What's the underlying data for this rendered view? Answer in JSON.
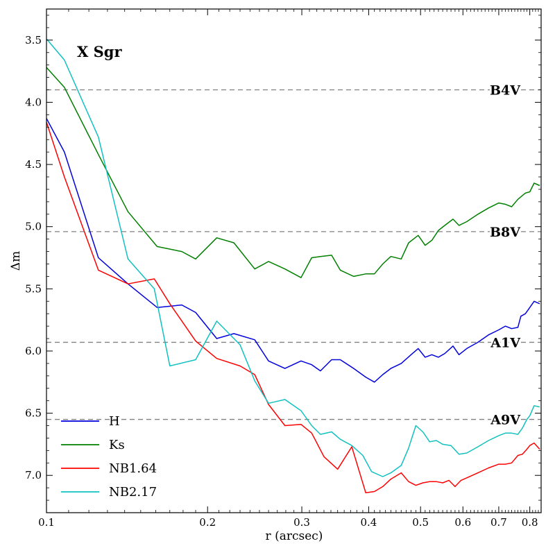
{
  "chart_data": {
    "type": "line",
    "title": "X Sgr",
    "xlabel": "r (arcsec)",
    "ylabel": "Δm",
    "xscale": "log",
    "xlim": [
      0.1,
      0.84
    ],
    "ylim": [
      7.3,
      3.25
    ],
    "y_inverted": true,
    "xticks": [
      0.1,
      0.2,
      0.3,
      0.4,
      0.5,
      0.6,
      0.7,
      0.8
    ],
    "xtick_labels": [
      "0.1",
      "0.2",
      "0.3",
      "0.4",
      "0.5",
      "0.6",
      "0.7",
      "0.8"
    ],
    "yticks": [
      3.5,
      4.0,
      4.5,
      5.0,
      5.5,
      6.0,
      6.5,
      7.0
    ],
    "ytick_labels": [
      "3.5",
      "4.0",
      "4.5",
      "5.0",
      "5.5",
      "6.0",
      "6.5",
      "7.0"
    ],
    "legend_position": "bottom-left",
    "reference_lines": [
      {
        "label": "B4V",
        "value": 3.9
      },
      {
        "label": "B8V",
        "value": 5.04
      },
      {
        "label": "A1V",
        "value": 5.93
      },
      {
        "label": "A9V",
        "value": 6.55
      }
    ],
    "series": [
      {
        "name": "H",
        "color": "#0000dd",
        "x": [
          0.1,
          0.108,
          0.125,
          0.142,
          0.161,
          0.179,
          0.19,
          0.208,
          0.224,
          0.245,
          0.26,
          0.279,
          0.299,
          0.313,
          0.325,
          0.341,
          0.354,
          0.375,
          0.395,
          0.41,
          0.425,
          0.44,
          0.46,
          0.48,
          0.495,
          0.51,
          0.525,
          0.54,
          0.555,
          0.575,
          0.59,
          0.61,
          0.64,
          0.67,
          0.7,
          0.72,
          0.74,
          0.76,
          0.77,
          0.785,
          0.8,
          0.815,
          0.835
        ],
        "y": [
          4.13,
          4.4,
          5.25,
          5.46,
          5.65,
          5.63,
          5.69,
          5.9,
          5.86,
          5.91,
          6.08,
          6.14,
          6.08,
          6.11,
          6.16,
          6.07,
          6.07,
          6.14,
          6.21,
          6.25,
          6.19,
          6.14,
          6.1,
          6.03,
          5.98,
          6.05,
          6.03,
          6.05,
          6.02,
          5.96,
          6.03,
          5.98,
          5.93,
          5.87,
          5.83,
          5.8,
          5.82,
          5.81,
          5.72,
          5.7,
          5.65,
          5.6,
          5.62
        ]
      },
      {
        "name": "Ks",
        "color": "#007f00",
        "x": [
          0.1,
          0.108,
          0.125,
          0.142,
          0.161,
          0.179,
          0.19,
          0.208,
          0.224,
          0.245,
          0.26,
          0.279,
          0.299,
          0.313,
          0.325,
          0.341,
          0.354,
          0.375,
          0.395,
          0.41,
          0.425,
          0.44,
          0.46,
          0.475,
          0.495,
          0.51,
          0.525,
          0.54,
          0.555,
          0.575,
          0.59,
          0.61,
          0.64,
          0.67,
          0.7,
          0.72,
          0.74,
          0.76,
          0.785,
          0.8,
          0.815,
          0.835
        ],
        "y": [
          3.72,
          3.88,
          4.42,
          4.88,
          5.16,
          5.2,
          5.26,
          5.09,
          5.13,
          5.34,
          5.28,
          5.34,
          5.41,
          5.25,
          5.24,
          5.23,
          5.35,
          5.4,
          5.38,
          5.38,
          5.3,
          5.24,
          5.26,
          5.13,
          5.07,
          5.15,
          5.11,
          5.03,
          4.99,
          4.94,
          4.99,
          4.96,
          4.9,
          4.85,
          4.81,
          4.82,
          4.84,
          4.78,
          4.73,
          4.72,
          4.65,
          4.67
        ]
      },
      {
        "name": "NB1.64",
        "color": "#ff0000",
        "x": [
          0.1,
          0.108,
          0.125,
          0.142,
          0.159,
          0.17,
          0.19,
          0.208,
          0.23,
          0.245,
          0.26,
          0.279,
          0.299,
          0.313,
          0.33,
          0.35,
          0.372,
          0.395,
          0.41,
          0.425,
          0.44,
          0.46,
          0.475,
          0.49,
          0.505,
          0.52,
          0.535,
          0.55,
          0.565,
          0.58,
          0.595,
          0.61,
          0.64,
          0.67,
          0.7,
          0.72,
          0.74,
          0.76,
          0.775,
          0.79,
          0.8,
          0.815,
          0.835
        ],
        "y": [
          4.16,
          4.6,
          5.35,
          5.46,
          5.42,
          5.62,
          5.92,
          6.06,
          6.12,
          6.19,
          6.43,
          6.6,
          6.59,
          6.66,
          6.85,
          6.95,
          6.77,
          7.14,
          7.13,
          7.09,
          7.03,
          6.98,
          7.05,
          7.08,
          7.06,
          7.05,
          7.05,
          7.06,
          7.04,
          7.09,
          7.04,
          7.02,
          6.98,
          6.94,
          6.91,
          6.91,
          6.9,
          6.84,
          6.83,
          6.79,
          6.76,
          6.74,
          6.79
        ]
      },
      {
        "name": "NB2.17",
        "color": "#11c0c0",
        "x": [
          0.1,
          0.108,
          0.125,
          0.142,
          0.159,
          0.17,
          0.19,
          0.208,
          0.23,
          0.245,
          0.26,
          0.279,
          0.299,
          0.313,
          0.325,
          0.341,
          0.354,
          0.372,
          0.39,
          0.405,
          0.425,
          0.44,
          0.46,
          0.475,
          0.49,
          0.505,
          0.52,
          0.535,
          0.55,
          0.57,
          0.59,
          0.61,
          0.64,
          0.67,
          0.7,
          0.72,
          0.74,
          0.76,
          0.775,
          0.79,
          0.8,
          0.815,
          0.835
        ],
        "y": [
          3.49,
          3.66,
          4.28,
          5.26,
          5.5,
          6.12,
          6.07,
          5.76,
          5.95,
          6.24,
          6.42,
          6.39,
          6.48,
          6.6,
          6.67,
          6.65,
          6.71,
          6.76,
          6.84,
          6.97,
          7.01,
          6.98,
          6.92,
          6.78,
          6.6,
          6.65,
          6.73,
          6.72,
          6.75,
          6.76,
          6.83,
          6.82,
          6.77,
          6.72,
          6.68,
          6.66,
          6.66,
          6.67,
          6.62,
          6.55,
          6.52,
          6.44,
          6.45
        ]
      }
    ]
  }
}
